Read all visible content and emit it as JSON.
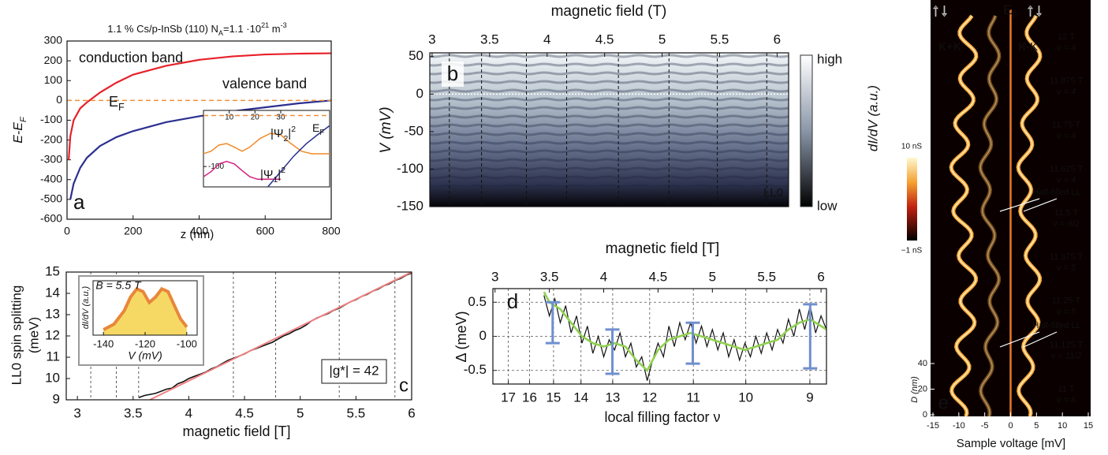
{
  "chart_data": [
    {
      "type": "line",
      "label": "a",
      "title": [
        "1.1 % Cs/p-InSb (110)  N",
        {
          "sub": "A"
        },
        "=1.1 ·10",
        {
          "sup": "21"
        },
        " m",
        {
          "sup": "-3"
        }
      ],
      "xlabel": "z (nm)",
      "ylabel": [
        "E-E",
        {
          "sub": "F"
        }
      ],
      "xlim": [
        0,
        800
      ],
      "xticks": [
        0,
        200,
        400,
        600,
        800
      ],
      "ylim": [
        -600,
        300
      ],
      "yticks": [
        -600,
        -500,
        -400,
        -300,
        -200,
        -100,
        0,
        100,
        200,
        300
      ],
      "series": [
        {
          "name": "conduction band",
          "color": "#e8202a",
          "x": [
            5,
            10,
            20,
            40,
            60,
            100,
            150,
            200,
            300,
            400,
            500,
            600,
            700,
            800
          ],
          "values": [
            -300,
            -180,
            -100,
            -40,
            -10,
            40,
            90,
            130,
            175,
            205,
            222,
            232,
            236,
            238
          ]
        },
        {
          "name": "valence band",
          "color": "#2b2f8f",
          "x": [
            10,
            20,
            40,
            60,
            100,
            150,
            200,
            300,
            400,
            500,
            600,
            700,
            800
          ],
          "values": [
            -500,
            -420,
            -340,
            -290,
            -230,
            -185,
            -155,
            -110,
            -80,
            -55,
            -35,
            -15,
            0
          ]
        },
        {
          "name": [
            "E",
            {
              "sub": "F"
            }
          ],
          "color": "#f0903a",
          "dash": true,
          "x": [
            0,
            800
          ],
          "values": [
            0,
            0
          ]
        }
      ],
      "inset": {
        "xlim": [
          0,
          49
        ],
        "xticks": [
          10,
          20,
          30
        ],
        "ylim": [
          -140,
          10
        ],
        "yticks": [
          -100
        ],
        "series": [
          {
            "name": [
              "|Ψ",
              {
                "sub": "2"
              },
              "|",
              {
                "sup": "2"
              }
            ],
            "color": "#f08a28",
            "x": [
              0,
              3,
              6,
              9,
              12,
              15,
              18,
              22,
              26,
              30,
              34,
              38,
              42,
              46,
              49
            ],
            "values": [
              -75,
              -70,
              -58,
              -55,
              -62,
              -70,
              -62,
              -45,
              -35,
              -38,
              -55,
              -70,
              -75,
              -75,
              -75
            ]
          },
          {
            "name": [
              "|Ψ",
              {
                "sub": "1"
              },
              "|",
              {
                "sup": "2"
              }
            ],
            "color": "#d6207f",
            "x": [
              0,
              3,
              6,
              9,
              12,
              15,
              18,
              21,
              24,
              27,
              30
            ],
            "values": [
              -120,
              -110,
              -95,
              -90,
              -95,
              -108,
              -120,
              -125,
              -125,
              -125,
              -125
            ]
          },
          {
            "name": [
              "E",
              {
                "sub": "F"
              }
            ],
            "color": "#f0903a",
            "dash": true,
            "x": [
              0,
              49
            ],
            "values": [
              0,
              0
            ]
          },
          {
            "color": "#2b2f8f",
            "x": [
              25,
              30,
              35,
              40,
              45,
              49
            ],
            "values": [
              -140,
              -110,
              -80,
              -55,
              -35,
              -20
            ]
          }
        ]
      }
    },
    {
      "type": "heatmap",
      "label": "b",
      "xlabel": "magnetic field (T)",
      "ylabel": "V (mV)",
      "xlim": [
        2.98,
        6.1
      ],
      "xticks": [
        3,
        3.5,
        4,
        4.5,
        5,
        5.5,
        6
      ],
      "ylim": [
        -150,
        55
      ],
      "yticks": [
        -150,
        -100,
        -50,
        0,
        50
      ],
      "vlines": [
        3.15,
        3.43,
        3.82,
        4.17,
        4.62,
        5.06,
        5.48,
        5.91
      ],
      "hline": 0,
      "colorbar_labels": [
        "high",
        "low"
      ],
      "annotation": "LL0"
    },
    {
      "type": "line",
      "label": "c",
      "xlabel": "magnetic field [T]",
      "ylabel": [
        "LL0 spin splitting",
        "(meV)"
      ],
      "xlim": [
        2.9,
        6
      ],
      "xticks": [
        3,
        3.5,
        4,
        4.5,
        5,
        5.5,
        6
      ],
      "ylim": [
        9,
        15
      ],
      "yticks": [
        9,
        10,
        11,
        12,
        13,
        14,
        15
      ],
      "vlines": [
        3.12,
        3.35,
        3.55,
        4.4,
        4.78,
        5.35,
        5.85
      ],
      "annotation": "|g*| = 42",
      "series": [
        {
          "color": "#111111",
          "x": [
            3.55,
            3.6,
            3.65,
            3.7,
            3.75,
            3.8,
            3.85,
            3.9,
            3.95,
            4.0,
            4.05,
            4.1,
            4.15,
            4.2,
            4.25,
            4.3,
            4.35,
            4.4,
            4.45,
            4.5,
            4.55,
            4.6,
            4.65,
            4.7,
            4.75,
            4.8,
            4.85,
            4.9,
            4.95,
            5.0,
            5.05,
            5.1,
            5.15,
            5.2,
            5.25,
            5.3,
            5.35,
            5.4,
            5.45,
            5.5,
            5.55,
            5.6,
            5.65,
            5.7,
            5.75,
            5.8,
            5.85,
            5.9,
            5.95,
            6.0
          ],
          "values": [
            9.1,
            9.2,
            9.25,
            9.3,
            9.4,
            9.5,
            9.55,
            9.75,
            9.85,
            10.0,
            10.1,
            10.2,
            10.3,
            10.45,
            10.55,
            10.7,
            10.85,
            10.95,
            11.05,
            11.15,
            11.3,
            11.4,
            11.5,
            11.6,
            11.7,
            11.85,
            12.0,
            12.1,
            12.25,
            12.35,
            12.5,
            12.7,
            12.85,
            12.95,
            13.05,
            13.2,
            13.3,
            13.45,
            13.6,
            13.7,
            13.85,
            13.95,
            14.1,
            14.2,
            14.35,
            14.45,
            14.6,
            14.7,
            14.85,
            14.95
          ]
        },
        {
          "color": "#f08080",
          "x": [
            3.65,
            6.0
          ],
          "values": [
            9,
            15
          ]
        }
      ],
      "inset": {
        "title": "B = 5.5 T",
        "xlabel": "V (mV)",
        "ylabel": "dI/dV (a.u.)",
        "xlim": [
          -145,
          -95
        ],
        "xticks": [
          -140,
          -120,
          -100
        ],
        "ylim": [
          0,
          1
        ],
        "series": [
          {
            "color": "#e8873a",
            "x": [
              -140,
              -135,
              -130,
              -127,
              -124,
              -121,
              -118,
              -115,
              -112,
              -109,
              -106,
              -103,
              -100
            ],
            "values": [
              0.1,
              0.2,
              0.45,
              0.7,
              0.85,
              0.8,
              0.6,
              0.7,
              0.85,
              0.8,
              0.55,
              0.3,
              0.15
            ]
          }
        ]
      }
    },
    {
      "type": "line",
      "label": "d",
      "xlabel": "magnetic field [T]",
      "x2label": "local filling factor ν",
      "ylabel": "Δ (meV)",
      "xlim": [
        2.98,
        6.05
      ],
      "xticks": [
        3,
        3.5,
        4,
        4.5,
        5,
        5.5,
        6
      ],
      "x2scale": "reciprocal",
      "x2lim": [
        17.81,
        8.77
      ],
      "x2ticks": [
        17,
        16,
        15,
        14,
        13,
        12,
        11,
        10,
        9
      ],
      "ylim": [
        -0.7,
        0.7
      ],
      "yticks": [
        -0.5,
        0,
        0.5
      ],
      "grid": true,
      "series": [
        {
          "color": "#111111",
          "x": [
            3.45,
            3.5,
            3.55,
            3.6,
            3.65,
            3.7,
            3.75,
            3.8,
            3.85,
            3.9,
            3.95,
            4.0,
            4.05,
            4.1,
            4.15,
            4.2,
            4.25,
            4.3,
            4.35,
            4.4,
            4.45,
            4.5,
            4.55,
            4.6,
            4.65,
            4.7,
            4.75,
            4.8,
            4.85,
            4.9,
            4.95,
            5.0,
            5.05,
            5.1,
            5.15,
            5.2,
            5.25,
            5.3,
            5.35,
            5.4,
            5.45,
            5.5,
            5.55,
            5.6,
            5.65,
            5.7,
            5.75,
            5.8,
            5.85,
            5.9,
            5.95,
            6.0,
            6.05
          ],
          "values": [
            0.6,
            0.3,
            0.55,
            0.2,
            0.45,
            0.05,
            0.3,
            -0.1,
            0.15,
            -0.25,
            0.0,
            -0.3,
            -0.05,
            -0.2,
            0.05,
            -0.3,
            -0.1,
            -0.45,
            -0.3,
            -0.65,
            -0.35,
            -0.1,
            -0.3,
            0.15,
            -0.15,
            0.2,
            -0.05,
            0.2,
            -0.1,
            0.15,
            -0.15,
            0.1,
            -0.2,
            0.05,
            -0.3,
            -0.05,
            -0.35,
            -0.1,
            -0.3,
            0.0,
            -0.25,
            0.05,
            -0.2,
            0.1,
            -0.1,
            0.25,
            0.0,
            0.4,
            0.1,
            0.45,
            0.05,
            0.3,
            0.1
          ]
        },
        {
          "color": "#8fd14f",
          "x": [
            3.45,
            3.5,
            3.6,
            3.7,
            3.8,
            3.9,
            4.0,
            4.1,
            4.2,
            4.3,
            4.4,
            4.5,
            4.6,
            4.7,
            4.8,
            4.9,
            5.0,
            5.1,
            5.2,
            5.3,
            5.4,
            5.5,
            5.6,
            5.7,
            5.8,
            5.9,
            6.0,
            6.05
          ],
          "values": [
            0.65,
            0.5,
            0.4,
            0.2,
            0.0,
            -0.1,
            -0.15,
            -0.1,
            -0.15,
            -0.35,
            -0.5,
            -0.2,
            -0.05,
            0.0,
            0.05,
            0.0,
            -0.05,
            -0.1,
            -0.15,
            -0.2,
            -0.15,
            -0.1,
            -0.05,
            0.1,
            0.2,
            0.25,
            0.15,
            0.1
          ]
        }
      ],
      "errorbars": {
        "color": "#6f8fcf",
        "x": [
          3.53,
          4.08,
          4.82,
          5.9
        ],
        "values": [
          0.2,
          -0.225,
          -0.1,
          0.0
        ],
        "errors": [
          0.3,
          0.325,
          0.3,
          0.47
        ]
      }
    },
    {
      "type": "heatmap",
      "label": "e",
      "xlabel": "Sample voltage [mV]",
      "title": "dI/dV (a.u.)",
      "xlim": [
        -15,
        15
      ],
      "xticks": [
        -15,
        -10,
        -5,
        0,
        5,
        10,
        15
      ],
      "ylabel": "D (nm)",
      "ylim": [
        0,
        40
      ],
      "yticks": [
        0,
        20,
        40
      ],
      "ef_voltage": 0,
      "ef_label": [
        "E",
        {
          "sub": "F"
        }
      ],
      "colorbar_labels": [
        "10 nS",
        "−1 nS"
      ],
      "spin_labels": [
        "↑↓",
        "↑↓"
      ],
      "valley_labels": [
        "K+K'",
        "K-K'"
      ],
      "annotations": [
        "Half-filled LL",
        "Half-filled LL"
      ],
      "levels": [
        {
          "field": "12 T",
          "nu": "ν = 4"
        },
        {
          "field": "11.875 T",
          "nu": "ν = 4"
        },
        {
          "field": "11.75 T",
          "nu": "ν = 4"
        },
        {
          "field": "11.625 T",
          "nu": "ν = 4"
        },
        {
          "field": "11.5 T",
          "nu": "ν = 9/2"
        },
        {
          "field": "11.375 T",
          "nu": "ν = 5"
        },
        {
          "field": "11.25 T",
          "nu": "ν = 5"
        },
        {
          "field": "11.125 T",
          "nu": "ν = 11/2"
        },
        {
          "field": "11 T",
          "nu": "ν = 6"
        }
      ]
    }
  ]
}
